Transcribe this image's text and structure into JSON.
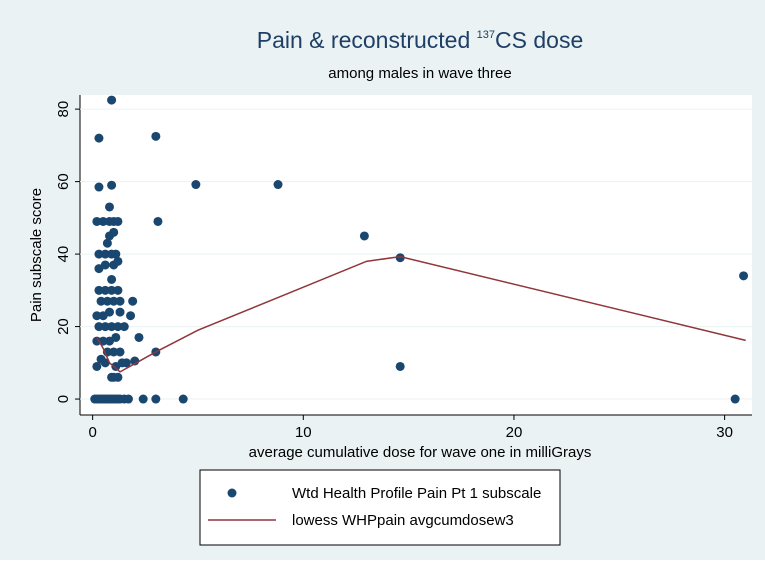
{
  "chart_data": {
    "type": "scatter",
    "title_parts": [
      "Pain & reconstructed ",
      "137",
      "CS dose"
    ],
    "subtitle": "among males in wave three",
    "x_label": "average cumulative dose for wave one in milliGrays",
    "y_label": "Pain subscale score",
    "xlim": [
      -0.6,
      31.3
    ],
    "ylim": [
      -4.4,
      83.9
    ],
    "xticks": [
      0,
      10,
      20,
      30
    ],
    "yticks": [
      0,
      20,
      40,
      60,
      80
    ],
    "grid": true,
    "series": [
      {
        "name": "Wtd Health Profile Pain Pt 1 subscale",
        "type": "scatter",
        "color": "#1a476f",
        "x": [
          0.1,
          0.2,
          0.3,
          0.4,
          0.5,
          0.6,
          0.7,
          0.8,
          0.9,
          1.0,
          1.1,
          1.2,
          1.3,
          1.5,
          1.7,
          2.4,
          3.0,
          4.3,
          30.5,
          0.2,
          0.4,
          0.6,
          0.9,
          1.0,
          1.2,
          1.1,
          0.7,
          1.0,
          1.3,
          1.4,
          1.6,
          2.0,
          3.0,
          0.2,
          0.5,
          0.8,
          1.1,
          2.2,
          0.3,
          0.6,
          0.9,
          1.2,
          1.5,
          0.2,
          0.5,
          0.8,
          1.3,
          1.8,
          0.4,
          0.7,
          1.0,
          1.3,
          1.9,
          0.3,
          0.6,
          0.9,
          1.2,
          0.9,
          0.3,
          0.6,
          1.0,
          1.2,
          0.3,
          0.6,
          0.9,
          1.1,
          0.7,
          0.8,
          1.0,
          0.8,
          0.2,
          0.5,
          1.0,
          1.2,
          0.8,
          0.3,
          0.9,
          0.3,
          0.9,
          3.0,
          3.1,
          4.9,
          8.8,
          12.9,
          14.6,
          14.6,
          30.9
        ],
        "values": [
          0,
          0,
          0,
          0,
          0,
          0,
          0,
          0,
          0,
          0,
          0,
          0,
          0,
          0,
          0,
          0,
          0,
          0,
          0,
          9,
          11,
          10,
          6,
          6,
          6,
          9,
          13,
          13,
          13,
          10,
          10,
          10.5,
          13,
          16,
          16,
          16,
          17,
          17,
          20,
          20,
          20,
          20,
          20,
          23,
          23,
          24,
          24,
          23,
          27,
          27,
          27,
          27,
          27,
          30,
          30,
          30,
          30,
          33,
          36,
          37,
          37,
          38,
          40,
          40,
          40,
          40,
          43,
          45,
          46,
          49,
          49,
          49,
          49,
          49,
          53,
          58.5,
          59,
          72,
          82.5,
          72.5,
          49,
          59.2,
          59.2,
          45,
          39,
          9,
          34
        ]
      },
      {
        "name": "lowess WHPpain avgcumdosew3",
        "type": "line",
        "color": "#90353b",
        "x": [
          0.2,
          0.5,
          0.8,
          1.3,
          3,
          5,
          9,
          13,
          14.6,
          31
        ],
        "values": [
          17,
          14,
          10,
          7.5,
          13,
          19,
          28.5,
          38,
          39.3,
          16.2
        ]
      }
    ]
  }
}
